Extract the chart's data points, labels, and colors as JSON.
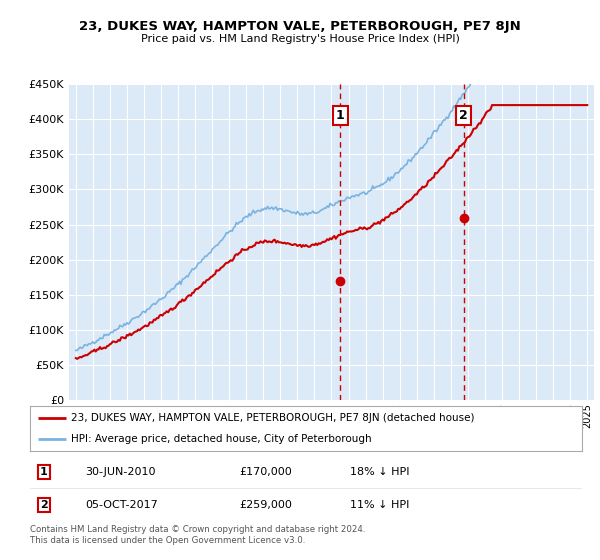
{
  "title": "23, DUKES WAY, HAMPTON VALE, PETERBOROUGH, PE7 8JN",
  "subtitle": "Price paid vs. HM Land Registry's House Price Index (HPI)",
  "legend_line1": "23, DUKES WAY, HAMPTON VALE, PETERBOROUGH, PE7 8JN (detached house)",
  "legend_line2": "HPI: Average price, detached house, City of Peterborough",
  "footnote": "Contains HM Land Registry data © Crown copyright and database right 2024.\nThis data is licensed under the Open Government Licence v3.0.",
  "annotation1_date": "30-JUN-2010",
  "annotation1_price": "£170,000",
  "annotation1_hpi": "18% ↓ HPI",
  "annotation2_date": "05-OCT-2017",
  "annotation2_price": "£259,000",
  "annotation2_hpi": "11% ↓ HPI",
  "ylim": [
    0,
    450000
  ],
  "yticks": [
    0,
    50000,
    100000,
    150000,
    200000,
    250000,
    300000,
    350000,
    400000,
    450000
  ],
  "background_color": "#ffffff",
  "plot_bg_color": "#dce9f7",
  "grid_color": "#ffffff",
  "hpi_color": "#7ab3e0",
  "price_color": "#cc0000",
  "annot_line_color": "#cc0000",
  "annot_box_color": "#cc0000",
  "sale1_year": 2010.5,
  "sale1_price": 170000,
  "sale2_year": 2017.75,
  "sale2_price": 259000
}
